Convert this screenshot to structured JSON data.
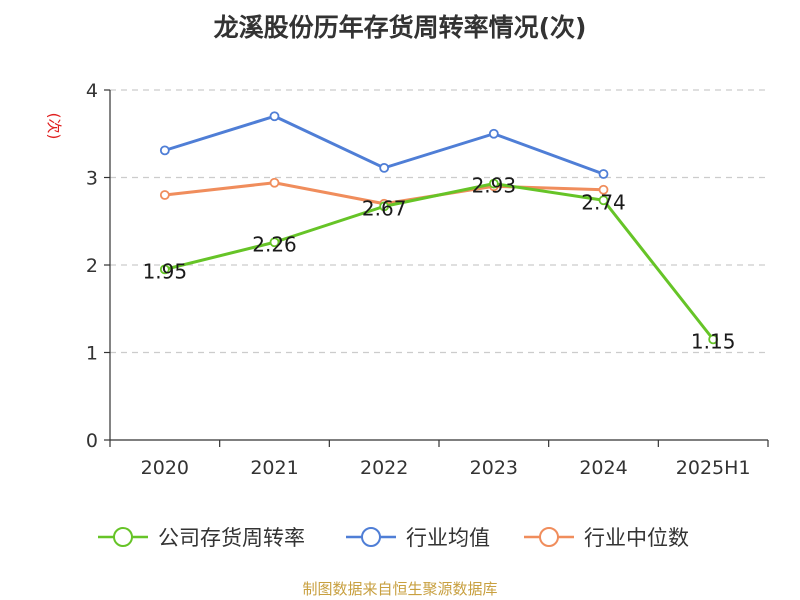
{
  "title": "龙溪股份历年存货周转率情况(次)",
  "y_unit": "(次)",
  "source": "制图数据来自恒生聚源数据库",
  "colors": {
    "company": "#66c427",
    "industry_avg": "#4f7ed6",
    "industry_median": "#f08d5c",
    "y_unit": "#e02020",
    "grid": "#cccccc",
    "axis": "#333333"
  },
  "chart_data": {
    "type": "line",
    "categories": [
      "2020",
      "2021",
      "2022",
      "2023",
      "2024",
      "2025H1"
    ],
    "ylim": [
      0,
      4
    ],
    "yticks": [
      0,
      1,
      2,
      3,
      4
    ],
    "grid": "horizontal-dashed",
    "legend_position": "bottom",
    "series": [
      {
        "name": "公司存货周转率",
        "color_key": "company",
        "values": [
          1.95,
          2.26,
          2.67,
          2.93,
          2.74,
          1.15
        ],
        "data_labels": [
          "1.95",
          "2.26",
          "2.67",
          "2.93",
          "2.74",
          "1.15"
        ]
      },
      {
        "name": "行业均值",
        "color_key": "industry_avg",
        "values": [
          3.31,
          3.7,
          3.11,
          3.5,
          3.04,
          null
        ]
      },
      {
        "name": "行业中位数",
        "color_key": "industry_median",
        "values": [
          2.8,
          2.94,
          2.7,
          2.9,
          2.86,
          null
        ]
      }
    ]
  }
}
